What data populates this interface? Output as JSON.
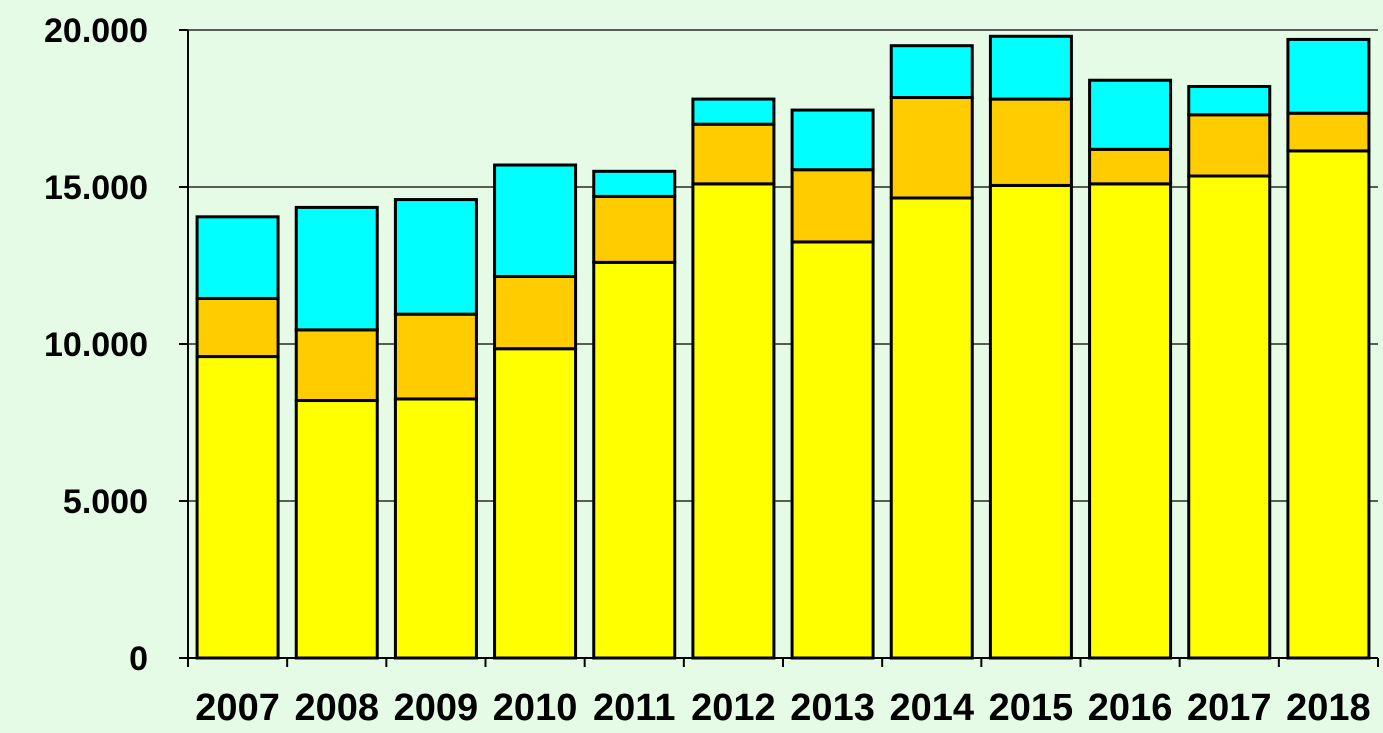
{
  "chart_data": {
    "type": "bar",
    "stacked": true,
    "title": "",
    "xlabel": "",
    "ylabel": "",
    "categories": [
      "2007",
      "2008",
      "2009",
      "2010",
      "2011",
      "2012",
      "2013",
      "2014",
      "2015",
      "2016",
      "2017",
      "2018"
    ],
    "series": [
      {
        "color": "#ffff00",
        "values": [
          9600,
          8200,
          8250,
          9850,
          12600,
          15100,
          13250,
          14650,
          15050,
          15100,
          15350,
          16150
        ]
      },
      {
        "color": "#ffcc00",
        "values": [
          1850,
          2250,
          2700,
          2300,
          2100,
          1900,
          2300,
          3200,
          2750,
          1100,
          1950,
          1200
        ]
      },
      {
        "color": "#00ffff",
        "values": [
          2600,
          3900,
          3650,
          3550,
          800,
          800,
          1900,
          1650,
          2000,
          2200,
          900,
          2350
        ]
      }
    ],
    "ylim": [
      0,
      20000
    ],
    "yticks": [
      0,
      5000,
      10000,
      15000,
      20000
    ],
    "ytick_labels": [
      "0",
      "5.000",
      "10.000",
      "15.000",
      "20.000"
    ],
    "grid": true,
    "legend": "none"
  }
}
